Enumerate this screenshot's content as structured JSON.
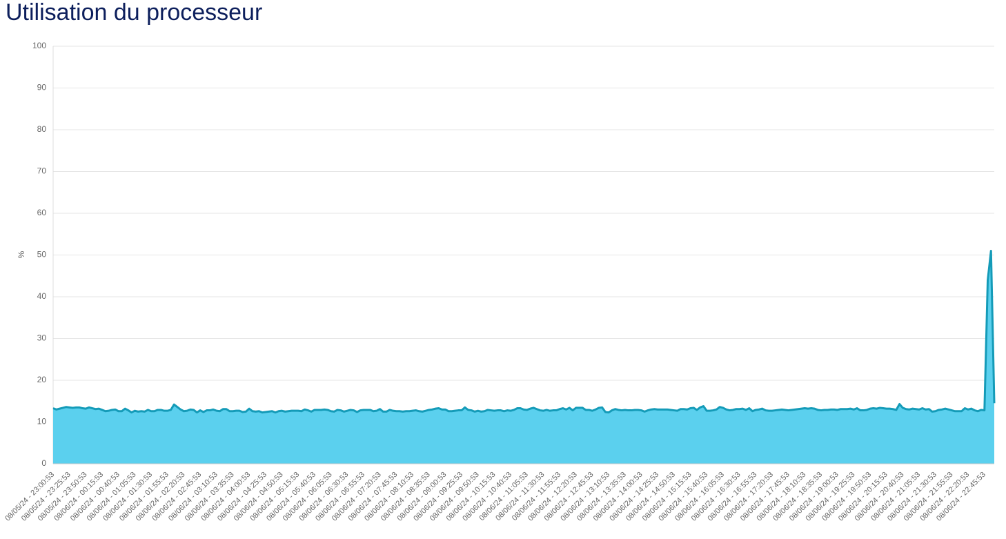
{
  "chart_data": {
    "type": "area",
    "title": "Utilisation du processeur",
    "y_label": "%",
    "ylim": [
      0,
      100
    ],
    "yticks": [
      0,
      10,
      20,
      30,
      40,
      50,
      60,
      70,
      80,
      90,
      100
    ],
    "grid": true,
    "categories": [
      "08/05/24 - 23:00:53",
      null,
      null,
      null,
      null,
      "08/05/24 - 23:25:53",
      null,
      null,
      null,
      null,
      "08/05/24 - 23:50:53",
      null,
      null,
      null,
      null,
      "08/06/24 - 00:15:53",
      null,
      null,
      null,
      null,
      "08/06/24 - 00:40:53",
      null,
      null,
      null,
      null,
      "08/06/24 - 01:05:53",
      null,
      null,
      null,
      null,
      "08/06/24 - 01:30:53",
      null,
      null,
      null,
      null,
      "08/06/24 - 01:55:53",
      null,
      null,
      null,
      null,
      "08/06/24 - 02:20:53",
      null,
      null,
      null,
      null,
      "08/06/24 - 02:45:53",
      null,
      null,
      null,
      null,
      "08/06/24 - 03:10:53",
      null,
      null,
      null,
      null,
      "08/06/24 - 03:35:53",
      null,
      null,
      null,
      null,
      "08/06/24 - 04:00:53",
      null,
      null,
      null,
      null,
      "08/06/24 - 04:25:53",
      null,
      null,
      null,
      null,
      "08/06/24 - 04:50:53",
      null,
      null,
      null,
      null,
      "08/06/24 - 05:15:53",
      null,
      null,
      null,
      null,
      "08/06/24 - 05:40:53",
      null,
      null,
      null,
      null,
      "08/06/24 - 06:05:53",
      null,
      null,
      null,
      null,
      "08/06/24 - 06:30:53",
      null,
      null,
      null,
      null,
      "08/06/24 - 06:55:53",
      null,
      null,
      null,
      null,
      "08/06/24 - 07:20:53",
      null,
      null,
      null,
      null,
      "08/06/24 - 07:45:53",
      null,
      null,
      null,
      null,
      "08/06/24 - 08:10:53",
      null,
      null,
      null,
      null,
      "08/06/24 - 08:35:53",
      null,
      null,
      null,
      null,
      "08/06/24 - 09:00:53",
      null,
      null,
      null,
      null,
      "08/06/24 - 09:25:53",
      null,
      null,
      null,
      null,
      "08/06/24 - 09:50:53",
      null,
      null,
      null,
      null,
      "08/06/24 - 10:15:53",
      null,
      null,
      null,
      null,
      "08/06/24 - 10:40:53",
      null,
      null,
      null,
      null,
      "08/06/24 - 11:05:53",
      null,
      null,
      null,
      null,
      "08/06/24 - 11:30:53",
      null,
      null,
      null,
      null,
      "08/06/24 - 11:55:53",
      null,
      null,
      null,
      null,
      "08/06/24 - 12:20:53",
      null,
      null,
      null,
      null,
      "08/06/24 - 12:45:53",
      null,
      null,
      null,
      null,
      "08/06/24 - 13:10:53",
      null,
      null,
      null,
      null,
      "08/06/24 - 13:35:53",
      null,
      null,
      null,
      null,
      "08/06/24 - 14:00:53",
      null,
      null,
      null,
      null,
      "08/06/24 - 14:25:53",
      null,
      null,
      null,
      null,
      "08/06/24 - 14:50:53",
      null,
      null,
      null,
      null,
      "08/06/24 - 15:15:53",
      null,
      null,
      null,
      null,
      "08/06/24 - 15:40:53",
      null,
      null,
      null,
      null,
      "08/06/24 - 16:05:53",
      null,
      null,
      null,
      null,
      "08/06/24 - 16:30:53",
      null,
      null,
      null,
      null,
      "08/06/24 - 16:55:53",
      null,
      null,
      null,
      null,
      "08/06/24 - 17:20:53",
      null,
      null,
      null,
      null,
      "08/06/24 - 17:45:53",
      null,
      null,
      null,
      null,
      "08/06/24 - 18:10:53",
      null,
      null,
      null,
      null,
      "08/06/24 - 18:35:53",
      null,
      null,
      null,
      null,
      "08/06/24 - 19:00:53",
      null,
      null,
      null,
      null,
      "08/06/24 - 19:25:53",
      null,
      null,
      null,
      null,
      "08/06/24 - 19:50:53",
      null,
      null,
      null,
      null,
      "08/06/24 - 20:15:53",
      null,
      null,
      null,
      null,
      "08/06/24 - 20:40:53",
      null,
      null,
      null,
      null,
      "08/06/24 - 21:05:53",
      null,
      null,
      null,
      null,
      "08/06/24 - 21:30:53",
      null,
      null,
      null,
      null,
      "08/06/24 - 21:55:53",
      null,
      null,
      null,
      null,
      "08/06/24 - 22:20:53",
      null,
      null,
      null,
      null,
      "08/06/24 - 22:45:53",
      null,
      null,
      null
    ],
    "series": [
      {
        "color": "#149bb8",
        "fill": "#5bd0ee",
        "values": [
          13.3,
          13.0,
          13.2,
          13.4,
          13.6,
          13.5,
          13.4,
          13.5,
          13.5,
          13.3,
          13.2,
          13.5,
          13.3,
          13.1,
          13.2,
          12.9,
          12.6,
          12.7,
          12.9,
          13.0,
          12.6,
          12.6,
          13.2,
          12.8,
          12.3,
          12.7,
          12.5,
          12.6,
          12.5,
          12.9,
          12.6,
          12.6,
          12.9,
          12.9,
          12.7,
          12.7,
          12.9,
          14.2,
          13.6,
          13.0,
          12.6,
          12.7,
          13.0,
          12.9,
          12.3,
          12.8,
          12.4,
          12.8,
          12.8,
          13.0,
          12.7,
          12.6,
          13.1,
          13.1,
          12.6,
          12.6,
          12.7,
          12.7,
          12.4,
          12.5,
          13.2,
          12.6,
          12.5,
          12.6,
          12.3,
          12.4,
          12.5,
          12.6,
          12.3,
          12.6,
          12.7,
          12.5,
          12.6,
          12.7,
          12.7,
          12.7,
          12.6,
          13.0,
          12.8,
          12.5,
          12.9,
          12.9,
          12.9,
          13.0,
          12.9,
          12.6,
          12.5,
          12.9,
          12.8,
          12.5,
          12.7,
          12.9,
          12.8,
          12.4,
          12.8,
          12.9,
          12.9,
          12.9,
          12.6,
          12.7,
          13.1,
          12.5,
          12.5,
          12.9,
          12.7,
          12.6,
          12.6,
          12.5,
          12.6,
          12.6,
          12.7,
          12.8,
          12.6,
          12.5,
          12.7,
          12.9,
          13.0,
          13.2,
          13.3,
          13.0,
          13.0,
          12.6,
          12.6,
          12.7,
          12.8,
          12.8,
          13.5,
          12.9,
          12.8,
          12.5,
          12.7,
          12.5,
          12.6,
          12.9,
          12.8,
          12.7,
          12.8,
          12.8,
          12.6,
          12.8,
          12.7,
          12.9,
          13.3,
          13.3,
          13.0,
          12.9,
          13.2,
          13.4,
          13.1,
          12.8,
          12.7,
          12.9,
          12.7,
          12.8,
          12.8,
          13.1,
          13.3,
          13.0,
          13.4,
          12.8,
          13.4,
          13.4,
          13.4,
          12.9,
          12.9,
          12.7,
          13.0,
          13.4,
          13.5,
          12.4,
          12.3,
          12.8,
          13.1,
          12.9,
          12.8,
          12.9,
          12.8,
          12.8,
          12.9,
          12.9,
          12.8,
          12.5,
          12.8,
          13.0,
          13.1,
          13.0,
          13.0,
          13.0,
          13.0,
          12.9,
          12.8,
          12.7,
          13.1,
          13.1,
          13.0,
          13.3,
          13.4,
          12.9,
          13.5,
          13.8,
          12.7,
          12.7,
          12.8,
          13.0,
          13.6,
          13.4,
          13.0,
          12.8,
          12.9,
          13.1,
          13.1,
          13.2,
          12.9,
          13.3,
          12.6,
          12.9,
          13.0,
          13.2,
          12.8,
          12.7,
          12.7,
          12.8,
          12.9,
          13.0,
          12.9,
          12.8,
          12.9,
          13.0,
          13.1,
          13.2,
          13.3,
          13.2,
          13.3,
          13.2,
          12.9,
          12.8,
          12.9,
          12.9,
          13.0,
          13.0,
          12.9,
          13.1,
          13.1,
          13.1,
          13.2,
          13.0,
          13.3,
          12.8,
          12.8,
          12.9,
          13.2,
          13.3,
          13.2,
          13.4,
          13.3,
          13.2,
          13.2,
          13.1,
          12.9,
          14.3,
          13.4,
          13.1,
          13.0,
          13.2,
          13.1,
          13.0,
          13.3,
          13.0,
          13.1,
          12.5,
          12.6,
          12.9,
          13.0,
          13.2,
          13.0,
          12.8,
          12.6,
          12.6,
          12.6,
          13.3,
          13.0,
          13.2,
          12.8,
          12.6,
          12.9,
          12.8,
          44,
          51,
          14.5
        ]
      }
    ]
  }
}
